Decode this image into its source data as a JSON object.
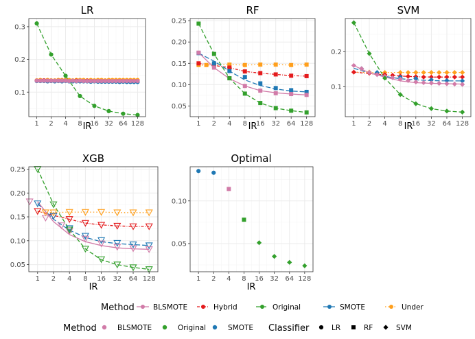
{
  "colors": {
    "BLSMOTE": "#d17ba8",
    "Hybrid": "#e41a1c",
    "Original": "#33a02c",
    "SMOTE": "#1f78b4",
    "Under": "#ff9f1c"
  },
  "chart_data": [
    {
      "type": "line",
      "title": "LR",
      "xlabel": "IR",
      "ylabel": "",
      "x": [
        1,
        2,
        4,
        8,
        16,
        32,
        64,
        128
      ],
      "x_ticks": [
        "1",
        "2",
        "4",
        "8",
        "16",
        "32",
        "64",
        "128"
      ],
      "ylim": [
        0.025,
        0.325
      ],
      "y_ticks": [
        0.1,
        0.2,
        0.3
      ],
      "y_tick_labels": [
        "0.1",
        "0.2",
        "0.3"
      ],
      "series": [
        {
          "name": "Original",
          "values": [
            0.31,
            0.215,
            0.15,
            0.088,
            0.058,
            0.042,
            0.034,
            0.03
          ]
        },
        {
          "name": "Under",
          "values": [
            0.136,
            0.136,
            0.137,
            0.137,
            0.136,
            0.137,
            0.137,
            0.137
          ]
        },
        {
          "name": "Hybrid",
          "values": [
            0.135,
            0.135,
            0.135,
            0.134,
            0.134,
            0.134,
            0.134,
            0.134
          ]
        },
        {
          "name": "SMOTE",
          "values": [
            0.134,
            0.134,
            0.134,
            0.133,
            0.133,
            0.132,
            0.132,
            0.131
          ]
        },
        {
          "name": "BLSMOTE",
          "values": [
            0.135,
            0.135,
            0.135,
            0.135,
            0.134,
            0.134,
            0.134,
            0.134
          ]
        }
      ],
      "point_x": [
        0,
        0.25,
        0.5,
        0.75,
        1,
        1.25,
        1.5,
        1.75,
        2,
        2.25,
        2.5,
        2.75,
        3,
        3.25,
        3.5,
        3.75,
        4,
        4.25,
        4.5,
        4.75,
        5,
        5.25,
        5.5,
        5.75,
        6,
        6.25,
        6.5,
        6.75,
        7
      ],
      "points": {
        "Hybrid": [
          0.135,
          0.135,
          0.136,
          0.135,
          0.135,
          0.134,
          0.135,
          0.135,
          0.135,
          0.134,
          0.134,
          0.135,
          0.134,
          0.134,
          0.135,
          0.134,
          0.134,
          0.134,
          0.134,
          0.134,
          0.134,
          0.133,
          0.134,
          0.134,
          0.134,
          0.134,
          0.134,
          0.134,
          0.134
        ],
        "Under": [
          0.136,
          0.137,
          0.136,
          0.137,
          0.136,
          0.136,
          0.137,
          0.137,
          0.137,
          0.137,
          0.136,
          0.137,
          0.137,
          0.137,
          0.136,
          0.137,
          0.136,
          0.137,
          0.137,
          0.136,
          0.137,
          0.137,
          0.137,
          0.137,
          0.137,
          0.137,
          0.137,
          0.137,
          0.137
        ],
        "SMOTE": [
          0.134,
          0.134,
          0.134,
          0.133,
          0.134,
          0.133,
          0.134,
          0.133,
          0.134,
          0.133,
          0.133,
          0.133,
          0.133,
          0.133,
          0.133,
          0.132,
          0.133,
          0.132,
          0.132,
          0.132,
          0.132,
          0.132,
          0.132,
          0.131,
          0.132,
          0.131,
          0.131,
          0.131,
          0.131
        ],
        "BLSMOTE": [
          0.135,
          0.135,
          0.135,
          0.135,
          0.135,
          0.135,
          0.135,
          0.135,
          0.135,
          0.134,
          0.135,
          0.134,
          0.135,
          0.134,
          0.134,
          0.134,
          0.134,
          0.134,
          0.134,
          0.134,
          0.134,
          0.134,
          0.134,
          0.134,
          0.134,
          0.134,
          0.134,
          0.134,
          0.134
        ],
        "Original": [
          0.31,
          null,
          null,
          null,
          0.215,
          null,
          null,
          null,
          0.15,
          null,
          null,
          null,
          0.088,
          null,
          null,
          null,
          0.058,
          null,
          null,
          null,
          0.042,
          null,
          null,
          null,
          0.034,
          null,
          null,
          null,
          0.03
        ]
      },
      "marker": "dot"
    },
    {
      "type": "line",
      "title": "RF",
      "xlabel": "IR",
      "ylabel": "",
      "x": [
        1,
        2,
        4,
        8,
        16,
        32,
        64,
        128
      ],
      "x_ticks": [
        "1",
        "2",
        "4",
        "8",
        "16",
        "32",
        "64",
        "128"
      ],
      "ylim": [
        0.025,
        0.255
      ],
      "y_ticks": [
        0.05,
        0.1,
        0.15,
        0.2,
        0.25
      ],
      "y_tick_labels": [
        "0.05",
        "0.10",
        "0.15",
        "0.20",
        "0.25"
      ],
      "series": [
        {
          "name": "Original",
          "values": [
            0.243,
            0.172,
            0.115,
            0.079,
            0.057,
            0.045,
            0.039,
            0.035
          ]
        },
        {
          "name": "Under",
          "values": [
            0.146,
            0.146,
            0.147,
            0.146,
            0.147,
            0.147,
            0.146,
            0.147
          ]
        },
        {
          "name": "Hybrid",
          "values": [
            0.15,
            0.145,
            0.14,
            0.131,
            0.127,
            0.124,
            0.121,
            0.12
          ]
        },
        {
          "name": "SMOTE",
          "values": [
            0.174,
            0.155,
            0.132,
            0.111,
            0.098,
            0.09,
            0.085,
            0.083
          ]
        },
        {
          "name": "BLSMOTE",
          "values": [
            0.175,
            0.14,
            0.114,
            0.097,
            0.086,
            0.081,
            0.078,
            0.076
          ]
        }
      ],
      "point_x": [
        0,
        0.5,
        1,
        1.5,
        2,
        2.5,
        3,
        3.5,
        4,
        4.5,
        5,
        5.5,
        6,
        6.5,
        7
      ],
      "points": {
        "Under": [
          0.146,
          0.146,
          0.146,
          null,
          0.147,
          null,
          0.146,
          null,
          0.147,
          null,
          0.147,
          null,
          0.146,
          null,
          0.147
        ],
        "Hybrid": [
          0.15,
          null,
          0.145,
          null,
          0.14,
          null,
          0.131,
          null,
          0.127,
          null,
          0.124,
          null,
          0.121,
          null,
          0.12
        ],
        "SMOTE": [
          0.174,
          null,
          0.15,
          null,
          0.132,
          null,
          0.118,
          null,
          0.103,
          null,
          0.092,
          null,
          0.087,
          null,
          0.083
        ],
        "BLSMOTE": [
          0.175,
          null,
          0.14,
          null,
          0.115,
          null,
          0.097,
          null,
          0.086,
          null,
          0.08,
          null,
          0.078,
          null,
          0.076
        ],
        "Original": [
          0.243,
          null,
          0.172,
          null,
          0.115,
          null,
          0.079,
          null,
          0.057,
          null,
          0.045,
          null,
          0.039,
          null,
          0.035
        ]
      },
      "marker": "square"
    },
    {
      "type": "line",
      "title": "SVM",
      "xlabel": "IR",
      "ylabel": "",
      "x": [
        1,
        2,
        4,
        8,
        16,
        32,
        64,
        128
      ],
      "x_ticks": [
        "1",
        "2",
        "4",
        "8",
        "16",
        "32",
        "64",
        "128"
      ],
      "ylim": [
        0.015,
        0.295
      ],
      "y_ticks": [
        0.1,
        0.2
      ],
      "y_tick_labels": [
        "0.1",
        "0.2"
      ],
      "series": [
        {
          "name": "Original",
          "values": [
            0.283,
            0.195,
            0.125,
            0.078,
            0.052,
            0.038,
            0.031,
            0.028
          ]
        },
        {
          "name": "Under",
          "values": [
            0.142,
            0.141,
            0.141,
            0.141,
            0.141,
            0.141,
            0.141,
            0.141
          ]
        },
        {
          "name": "Hybrid",
          "values": [
            0.142,
            0.138,
            0.134,
            0.131,
            0.129,
            0.128,
            0.128,
            0.128
          ]
        },
        {
          "name": "SMOTE",
          "values": [
            0.153,
            0.14,
            0.13,
            0.123,
            0.12,
            0.118,
            0.117,
            0.117
          ]
        },
        {
          "name": "BLSMOTE",
          "values": [
            0.161,
            0.14,
            0.128,
            0.117,
            0.112,
            0.11,
            0.109,
            0.108
          ]
        }
      ],
      "point_x": [
        0,
        0.5,
        1,
        1.5,
        2,
        2.5,
        3,
        3.5,
        4,
        4.5,
        5,
        5.5,
        6,
        6.5,
        7
      ],
      "points": {
        "Under": [
          null,
          null,
          0.142,
          null,
          0.141,
          null,
          0.141,
          0.141,
          0.141,
          0.141,
          0.141,
          0.141,
          0.141,
          0.141,
          0.141
        ],
        "Hybrid": [
          0.142,
          null,
          0.139,
          0.137,
          0.135,
          0.133,
          0.131,
          0.13,
          0.129,
          0.128,
          0.128,
          0.128,
          0.128,
          0.128,
          0.128
        ],
        "SMOTE": [
          null,
          0.152,
          null,
          0.141,
          null,
          null,
          0.128,
          null,
          0.124,
          null,
          0.12,
          null,
          0.118,
          null,
          0.117
        ],
        "BLSMOTE": [
          0.161,
          0.152,
          0.141,
          0.135,
          0.13,
          0.126,
          0.122,
          0.118,
          0.114,
          0.112,
          0.111,
          0.11,
          0.109,
          0.108,
          0.107
        ],
        "Original": [
          0.283,
          null,
          0.195,
          null,
          0.125,
          null,
          0.078,
          null,
          0.052,
          null,
          0.038,
          null,
          0.031,
          null,
          0.028
        ]
      },
      "marker": "diamond"
    },
    {
      "type": "line",
      "title": "XGB",
      "xlabel": "IR",
      "ylabel": "",
      "x": [
        1,
        2,
        4,
        8,
        16,
        32,
        64,
        128
      ],
      "x_ticks": [
        "1",
        "2",
        "4",
        "8",
        "16",
        "32",
        "64",
        "128"
      ],
      "ylim": [
        0.035,
        0.255
      ],
      "y_ticks": [
        0.05,
        0.1,
        0.15,
        0.2,
        0.25
      ],
      "y_tick_labels": [
        "0.05",
        "0.10",
        "0.15",
        "0.20",
        "0.25"
      ],
      "series": [
        {
          "name": "Original",
          "values": [
            0.25,
            0.176,
            0.123,
            0.083,
            0.06,
            0.05,
            0.044,
            0.04
          ]
        },
        {
          "name": "Under",
          "values": [
            0.16,
            0.159,
            0.16,
            0.16,
            0.16,
            0.159,
            0.159,
            0.159
          ]
        },
        {
          "name": "Hybrid",
          "values": [
            0.162,
            0.153,
            0.145,
            0.137,
            0.133,
            0.131,
            0.13,
            0.13
          ]
        },
        {
          "name": "SMOTE",
          "values": [
            0.178,
            0.145,
            0.122,
            0.107,
            0.098,
            0.094,
            0.092,
            0.09
          ]
        },
        {
          "name": "BLSMOTE",
          "values": [
            0.182,
            0.14,
            0.113,
            0.098,
            0.09,
            0.085,
            0.083,
            0.082
          ]
        }
      ],
      "point_x": [
        -0.5,
        0,
        0.5,
        1,
        1.5,
        2,
        2.5,
        3,
        3.5,
        4,
        4.5,
        5,
        5.5,
        6,
        6.5,
        7
      ],
      "points": {
        "Under": [
          null,
          null,
          0.159,
          0.159,
          null,
          0.16,
          null,
          0.16,
          null,
          0.16,
          null,
          0.159,
          null,
          0.159,
          null,
          0.159
        ],
        "Hybrid": [
          null,
          0.162,
          null,
          0.152,
          null,
          0.145,
          null,
          0.137,
          null,
          0.133,
          null,
          0.131,
          null,
          0.13,
          null,
          0.13
        ],
        "SMOTE": [
          null,
          0.178,
          null,
          0.152,
          null,
          0.126,
          null,
          0.11,
          null,
          0.101,
          null,
          0.095,
          null,
          0.092,
          null,
          0.09
        ],
        "BLSMOTE": [
          0.182,
          null,
          0.148,
          null,
          0.132,
          0.12,
          null,
          0.104,
          null,
          0.094,
          null,
          0.087,
          null,
          0.084,
          null,
          0.082
        ],
        "Original": [
          null,
          0.25,
          null,
          0.176,
          null,
          0.123,
          null,
          0.083,
          null,
          0.061,
          null,
          0.05,
          null,
          0.044,
          null,
          0.04
        ]
      },
      "marker": "triangle"
    },
    {
      "type": "scatter",
      "title": "Optimal",
      "xlabel": "IR",
      "ylabel": "",
      "x": [
        1,
        2,
        4,
        8,
        16,
        32,
        64,
        128
      ],
      "x_ticks": [
        "1",
        "2",
        "4",
        "8",
        "16",
        "32",
        "64",
        "128"
      ],
      "ylim": [
        0.017,
        0.14
      ],
      "y_ticks": [
        0.05,
        0.1
      ],
      "y_tick_labels": [
        "0.05",
        "0.10"
      ],
      "series": [
        {
          "name": "SMOTE",
          "classifier": "LR",
          "x": [
            1,
            2
          ],
          "values": [
            0.135,
            0.133
          ]
        },
        {
          "name": "BLSMOTE",
          "classifier": "RF",
          "x": [
            4
          ],
          "values": [
            0.114
          ]
        },
        {
          "name": "Original",
          "classifier": "RF",
          "x": [
            8
          ],
          "values": [
            0.078
          ]
        },
        {
          "name": "Original",
          "classifier": "SVM",
          "x": [
            16,
            32,
            64,
            128
          ],
          "values": [
            0.051,
            0.035,
            0.028,
            0.024
          ]
        }
      ]
    }
  ],
  "legend1": {
    "title": "Method",
    "items": [
      "BLSMOTE",
      "Hybrid",
      "Original",
      "SMOTE",
      "Under"
    ]
  },
  "legend2": {
    "title": "Method",
    "method_items": [
      "BLSMOTE",
      "Original",
      "SMOTE"
    ],
    "classifier_title": "Classifier",
    "classifier_items": [
      "LR",
      "RF",
      "SVM"
    ]
  }
}
